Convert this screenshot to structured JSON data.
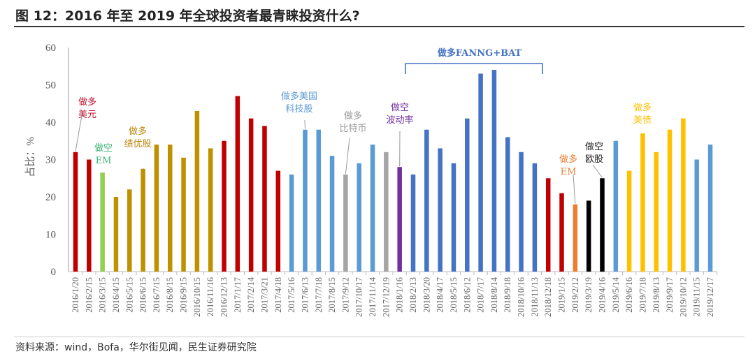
{
  "title": "图 12：2016 年至 2019 年全球投资者最青睐投资什么?",
  "source": "资料来源：wind，Bofa，华尔街见闻，民生证券研究院",
  "chart_data": {
    "type": "bar",
    "ylabel": "占比：%",
    "ylim": [
      0,
      60
    ],
    "yticks": [
      0,
      10,
      20,
      30,
      40,
      50,
      60
    ],
    "grid": false,
    "categories": [
      "2016/1/20",
      "2016/2/15",
      "2016/3/15",
      "2016/4/15",
      "2016/5/15",
      "2016/6/15",
      "2016/7/15",
      "2016/8/15",
      "2016/9/15",
      "2016/10/15",
      "2016/11/16",
      "2016/12/13",
      "2017/1/17",
      "2017/2/14",
      "2017/3/21",
      "2017/4/18",
      "2017/5/16",
      "2017/6/13",
      "2017/7/18",
      "2017/8/15",
      "2017/9/12",
      "2017/10/17",
      "2017/11/14",
      "2017/12/19",
      "2018/1/16",
      "2018/2/13",
      "2018/3/20",
      "2018/4/17",
      "2018/5/15",
      "2018/6/12",
      "2018/7/17",
      "2018/8/14",
      "2018/9/18",
      "2018/10/16",
      "2018/11/13",
      "2018/12/18",
      "2019/1/15",
      "2019/2/12",
      "2019/3/19",
      "2019/4/16",
      "2019/5/14",
      "2019/6/16",
      "2019/7/18",
      "2019/8/13",
      "2019/9/17",
      "2019/10/12",
      "2019/11/15",
      "2019/12/17"
    ],
    "values": [
      32,
      30,
      26.5,
      20,
      22,
      27.5,
      34,
      34,
      30.5,
      43,
      33,
      35,
      47,
      41,
      39,
      27,
      26,
      38,
      38,
      31,
      26,
      29,
      34,
      32,
      28,
      26,
      38,
      33,
      29,
      41,
      53,
      54,
      36,
      32,
      29,
      25,
      21,
      18,
      19,
      25,
      35,
      27,
      37,
      32,
      38,
      41,
      30,
      34
    ],
    "bar_colors": [
      "#c00000",
      "#c00000",
      "#92d050",
      "#bf9000",
      "#bf9000",
      "#bf9000",
      "#bf9000",
      "#bf9000",
      "#bf9000",
      "#bf9000",
      "#bf9000",
      "#c00000",
      "#c00000",
      "#c00000",
      "#c00000",
      "#c00000",
      "#5b9bd5",
      "#5b9bd5",
      "#5b9bd5",
      "#5b9bd5",
      "#a5a5a5",
      "#5b9bd5",
      "#5b9bd5",
      "#a5a5a5",
      "#7030a0",
      "#4472c4",
      "#4472c4",
      "#4472c4",
      "#4472c4",
      "#4472c4",
      "#4472c4",
      "#4472c4",
      "#4472c4",
      "#4472c4",
      "#4472c4",
      "#c00000",
      "#c00000",
      "#ed7d31",
      "#000000",
      "#000000",
      "#5b9bd5",
      "#ffc000",
      "#ffc000",
      "#ffc000",
      "#ffc000",
      "#ffc000",
      "#5b9bd5",
      "#5b9bd5"
    ],
    "annotations": [
      {
        "lines": [
          "做多",
          "美元"
        ],
        "color": "#c0152f",
        "bar": 0
      },
      {
        "lines": [
          "做空",
          "EM"
        ],
        "color": "#3cb371",
        "bar": null
      },
      {
        "lines": [
          "做多",
          "绩优股"
        ],
        "color": "#b8860b",
        "bar": 5
      },
      {
        "lines": [
          "做多美国",
          "科技股"
        ],
        "color": "#5b9bd5",
        "bar": 17
      },
      {
        "lines": [
          "做多",
          "比特币"
        ],
        "color": "#999999",
        "bar": 20
      },
      {
        "lines": [
          "做空",
          "波动率"
        ],
        "color": "#7030a0",
        "bar": 24
      },
      {
        "lines": [
          "做多FANNG+BAT"
        ],
        "color": "#4472c4",
        "bar_range": [
          25,
          34
        ]
      },
      {
        "lines": [
          "做多",
          "EM"
        ],
        "color": "#ed7d31",
        "bar": 37
      },
      {
        "lines": [
          "做空",
          "欧股"
        ],
        "color": "#222222",
        "bar": 39
      },
      {
        "lines": [
          "做多",
          "美债"
        ],
        "color": "#ffc000",
        "bar": null
      }
    ]
  }
}
